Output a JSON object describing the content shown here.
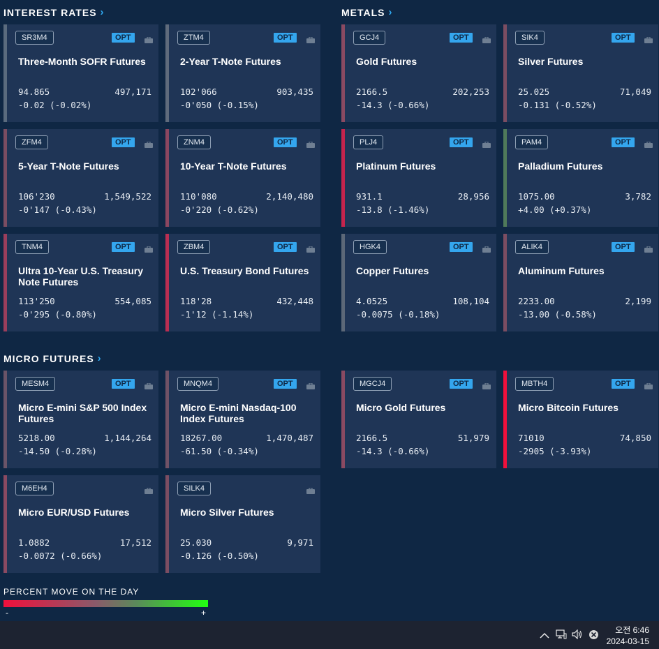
{
  "sections": {
    "interest_rates": "INTEREST RATES",
    "metals": "METALS",
    "micro_futures": "MICRO FUTURES"
  },
  "opt_label": "OPT",
  "cards": [
    {
      "symbol": "SR3M4",
      "name": "Three-Month SOFR Futures",
      "price": "94.865",
      "volume": "497,171",
      "change": "-0.02 (-0.02%)",
      "color": "#5a6b7e"
    },
    {
      "symbol": "ZTM4",
      "name": "2-Year T-Note Futures",
      "price": "102'066",
      "volume": "903,435",
      "change": "-0'050 (-0.15%)",
      "color": "#5f6b7c"
    },
    {
      "symbol": "GCJ4",
      "name": "Gold Futures",
      "price": "2166.5",
      "volume": "202,253",
      "change": "-14.3 (-0.66%)",
      "color": "#8a4a62"
    },
    {
      "symbol": "SIK4",
      "name": "Silver Futures",
      "price": "25.025",
      "volume": "71,049",
      "change": "-0.131 (-0.52%)",
      "color": "#7b4d62"
    },
    {
      "symbol": "ZFM4",
      "name": "5-Year T-Note Futures",
      "price": "106'230",
      "volume": "1,549,522",
      "change": "-0'147 (-0.43%)",
      "color": "#7a4d62"
    },
    {
      "symbol": "ZNM4",
      "name": "10-Year T-Note Futures",
      "price": "110'080",
      "volume": "2,140,480",
      "change": "-0'220 (-0.62%)",
      "color": "#8a4660"
    },
    {
      "symbol": "PLJ4",
      "name": "Platinum Futures",
      "price": "931.1",
      "volume": "28,956",
      "change": "-13.8 (-1.46%)",
      "color": "#c4244d"
    },
    {
      "symbol": "PAM4",
      "name": "Palladium Futures",
      "price": "1075.00",
      "volume": "3,782",
      "change": "+4.00 (+0.37%)",
      "color": "#4f7a5a"
    },
    {
      "symbol": "TNM4",
      "name": "Ultra 10-Year U.S. Treasury Note Futures",
      "price": "113'250",
      "volume": "554,085",
      "change": "-0'295 (-0.80%)",
      "color": "#9a3e5c"
    },
    {
      "symbol": "ZBM4",
      "name": "U.S. Treasury Bond Futures",
      "price": "118'28",
      "volume": "432,448",
      "change": "-1'12 (-1.14%)",
      "color": "#b82e52"
    },
    {
      "symbol": "HGK4",
      "name": "Copper Futures",
      "price": "4.0525",
      "volume": "108,104",
      "change": "-0.0075 (-0.18%)",
      "color": "#5c6878"
    },
    {
      "symbol": "ALIK4",
      "name": "Aluminum Futures",
      "price": "2233.00",
      "volume": "2,199",
      "change": "-13.00 (-0.58%)",
      "color": "#7b4d62"
    },
    {
      "symbol": "MESM4",
      "name": "Micro E-mini S&P 500 Index Futures",
      "price": "5218.00",
      "volume": "1,144,264",
      "change": "-14.50 (-0.28%)",
      "color": "#6a5468"
    },
    {
      "symbol": "MNQM4",
      "name": "Micro E-mini Nasdaq-100 Index Futures",
      "price": "18267.00",
      "volume": "1,470,487",
      "change": "-61.50 (-0.34%)",
      "color": "#705266"
    },
    {
      "symbol": "MGCJ4",
      "name": "Micro Gold Futures",
      "price": "2166.5",
      "volume": "51,979",
      "change": "-14.3 (-0.66%)",
      "color": "#8a4a62"
    },
    {
      "symbol": "MBTH4",
      "name": "Micro Bitcoin Futures",
      "price": "71010",
      "volume": "74,850",
      "change": "-2905 (-3.93%)",
      "color": "#f0103c"
    },
    {
      "symbol": "M6EH4",
      "name": "Micro EUR/USD Futures",
      "price": "1.0882",
      "volume": "17,512",
      "change": "-0.0072 (-0.66%)",
      "color": "#8a4a62"
    },
    {
      "symbol": "SILK4",
      "name": "Micro Silver Futures",
      "price": "25.030",
      "volume": "9,971",
      "change": "-0.126 (-0.50%)",
      "color": "#7b4d62"
    }
  ],
  "legend": {
    "title": "PERCENT MOVE ON THE DAY",
    "minus": "-",
    "plus": "+"
  },
  "taskbar": {
    "time": "오전 6:46",
    "date": "2024-03-15",
    "icons": [
      "chevron-up-icon",
      "network-icon",
      "volume-icon",
      "close-circle-icon"
    ]
  }
}
